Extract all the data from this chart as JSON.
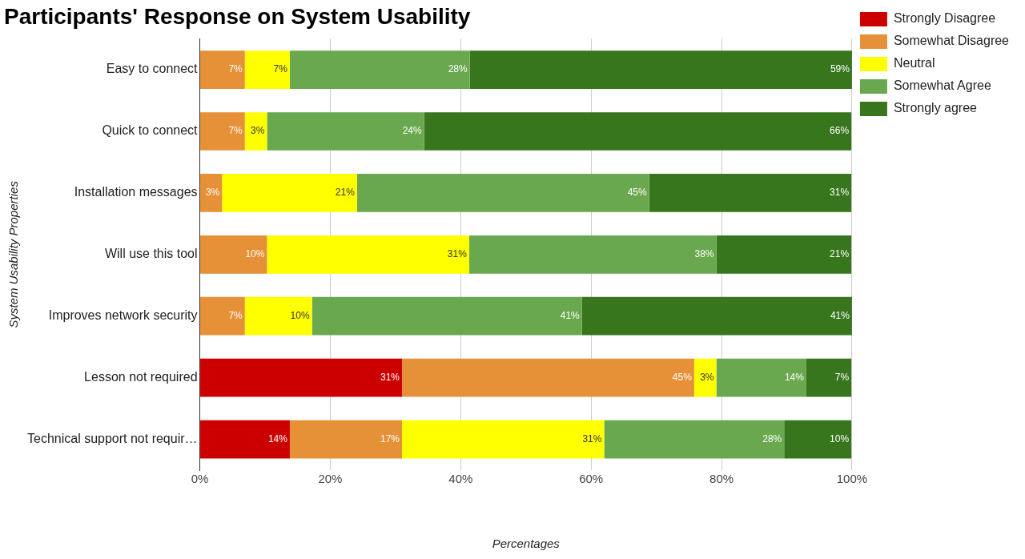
{
  "chart_data": {
    "type": "bar",
    "orientation": "horizontal",
    "stacked": true,
    "title": "Participants' Response on System Usability",
    "xlabel": "Percentages",
    "ylabel": "System Usability Properties",
    "categories": [
      "Easy to connect",
      "Quick to connect",
      "Installation messages",
      "Will use this tool",
      "Improves network security",
      "Lesson not required",
      "Technical support not requir…"
    ],
    "series": [
      {
        "name": "Strongly Disagree",
        "color": "#cc0000",
        "values": [
          null,
          null,
          null,
          null,
          null,
          31.0,
          13.8
        ],
        "value_labels": [
          null,
          null,
          null,
          null,
          null,
          "31%",
          "14%"
        ]
      },
      {
        "name": "Somewhat Disagree",
        "color": "#e69138",
        "values": [
          6.9,
          6.9,
          3.4,
          10.3,
          6.9,
          44.8,
          17.2
        ],
        "value_labels": [
          "7%",
          "7%",
          "3%",
          "10%",
          "7%",
          "45%",
          "17%"
        ]
      },
      {
        "name": "Neutral",
        "color": "#ffff00",
        "values": [
          6.9,
          3.4,
          20.7,
          31.0,
          10.3,
          3.4,
          31.0
        ],
        "value_labels": [
          "7%",
          "3%",
          "21%",
          "31%",
          "10%",
          "3%",
          "31%"
        ]
      },
      {
        "name": "Somewhat Agree",
        "color": "#6aa84f",
        "values": [
          27.6,
          24.1,
          44.8,
          37.9,
          41.4,
          13.8,
          27.6
        ],
        "value_labels": [
          "28%",
          "24%",
          "45%",
          "38%",
          "41%",
          "14%",
          "28%"
        ]
      },
      {
        "name": "Strongly agree",
        "color": "#38761d",
        "values": [
          58.6,
          65.5,
          31.0,
          20.7,
          41.4,
          6.9,
          10.3
        ],
        "value_labels": [
          "59%",
          "66%",
          "31%",
          "21%",
          "41%",
          "7%",
          "10%"
        ]
      }
    ],
    "xlim": [
      0,
      100
    ],
    "xticks": [
      {
        "value": 0,
        "label": "0%"
      },
      {
        "value": 20,
        "label": "20%"
      },
      {
        "value": 40,
        "label": "40%"
      },
      {
        "value": 60,
        "label": "60%"
      },
      {
        "value": 80,
        "label": "80%"
      },
      {
        "value": 100,
        "label": "100%"
      }
    ],
    "grid": "x",
    "legend": "top right"
  }
}
